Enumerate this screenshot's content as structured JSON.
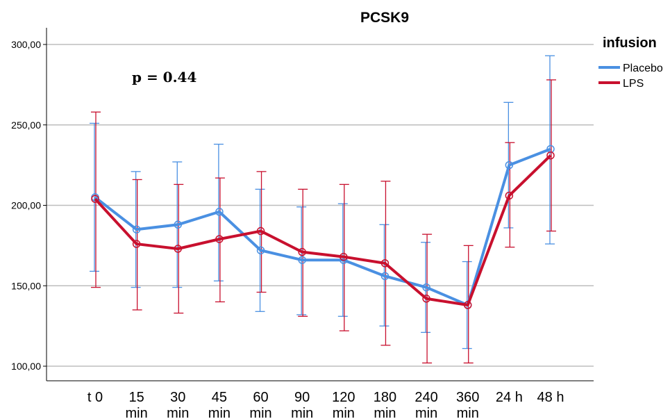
{
  "chart_data": {
    "type": "line",
    "title": "PCSK9",
    "annotation": "p = 0.44",
    "xlabel": "",
    "ylabel": "",
    "categories": [
      [
        "t 0"
      ],
      [
        "15",
        "min"
      ],
      [
        "30",
        "min"
      ],
      [
        "45",
        "min"
      ],
      [
        "60",
        "min"
      ],
      [
        "90",
        "min"
      ],
      [
        "120",
        "min"
      ],
      [
        "180",
        "min"
      ],
      [
        "240",
        "min"
      ],
      [
        "360",
        "min"
      ],
      [
        "24 h"
      ],
      [
        "48 h"
      ]
    ],
    "ylim": [
      100,
      300
    ],
    "yticks": [
      "100,00",
      "150,00",
      "200,00",
      "250,00",
      "300,00"
    ],
    "grid": true,
    "legend": {
      "title": "infusion",
      "placement": "top-right"
    },
    "series": [
      {
        "name": "Placebo",
        "color": "#4a90e2",
        "values": [
          205,
          185,
          188,
          196,
          172,
          166,
          166,
          156,
          149,
          138,
          225,
          235
        ],
        "error_high": [
          251,
          221,
          227,
          238,
          210,
          199,
          201,
          188,
          177,
          165,
          264,
          293
        ],
        "error_low": [
          159,
          149,
          149,
          153,
          134,
          132,
          131,
          125,
          121,
          111,
          186,
          176
        ]
      },
      {
        "name": "LPS",
        "color": "#c8102e",
        "values": [
          204,
          176,
          173,
          179,
          184,
          171,
          168,
          164,
          142,
          138,
          206,
          231
        ],
        "error_high": [
          258,
          216,
          213,
          217,
          221,
          210,
          213,
          215,
          182,
          175,
          239,
          278
        ],
        "error_low": [
          149,
          135,
          133,
          140,
          146,
          131,
          122,
          113,
          102,
          102,
          174,
          184
        ]
      }
    ]
  }
}
